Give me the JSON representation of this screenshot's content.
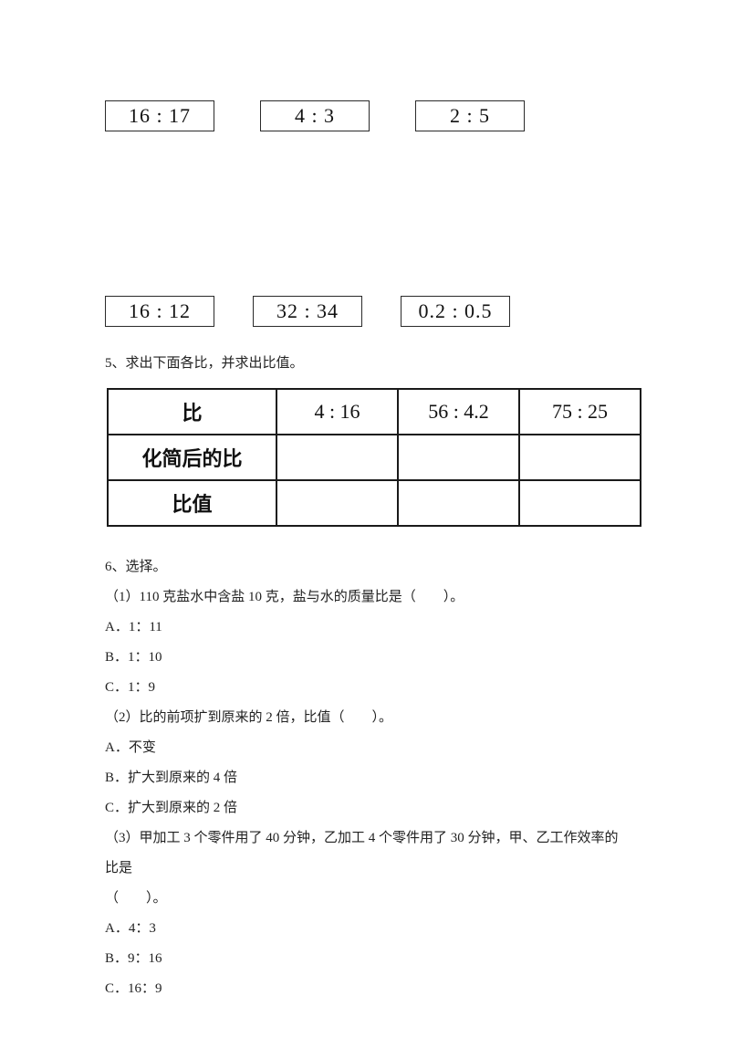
{
  "ratio_row_1": {
    "boxes": [
      "16 : 17",
      "4 : 3",
      "2 : 5"
    ]
  },
  "ratio_row_2": {
    "boxes": [
      "16 : 12",
      "32 : 34",
      "0.2 : 0.5"
    ]
  },
  "q5": {
    "title": "5、求出下面各比，并求出比值。",
    "table": {
      "headers": [
        "比",
        "4 : 16",
        "56 : 4.2",
        "75 : 25"
      ],
      "row1_label": "化简后的比",
      "row2_label": "比值",
      "row1_cells": [
        "",
        "",
        ""
      ],
      "row2_cells": [
        "",
        "",
        ""
      ]
    }
  },
  "q6": {
    "title": "6、选择。",
    "sub1": {
      "stem": "（1）110 克盐水中含盐 10 克，盐与水的质量比是（　　）。",
      "optA": "A．1：11",
      "optB": "B．1：10",
      "optC": "C．1：9"
    },
    "sub2": {
      "stem": "（2）比的前项扩到原来的 2 倍，比值（　　）。",
      "optA": "A．不变",
      "optB": "B．扩大到原来的 4 倍",
      "optC": "C．扩大到原来的 2 倍"
    },
    "sub3": {
      "stem_line1": "（3）甲加工 3 个零件用了 40 分钟，乙加工 4 个零件用了 30 分钟，甲、乙工作效率的比是",
      "stem_line2": "（　　）。",
      "optA": "A．4：3",
      "optB": "B．9：16",
      "optC": "C．16：9"
    }
  }
}
